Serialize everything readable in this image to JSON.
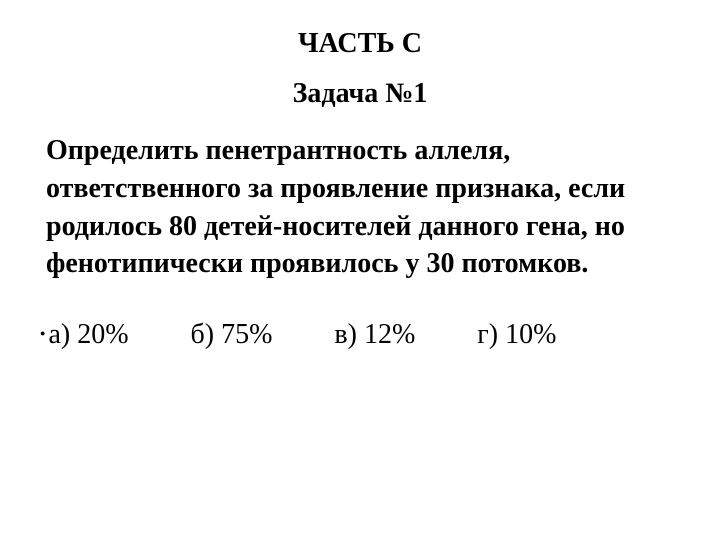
{
  "section_title": "ЧАСТЬ С",
  "task_title": "Задача №1",
  "problem_text": "Определить пенетрантность аллеля, ответственного за проявление признака, если родилось 80 детей-носителей данного гена, но фенотипически проявилось у 30 потомков.",
  "options": {
    "a": "а) 20%",
    "b": "б) 75%",
    "c": "в) 12%",
    "d": "г) 10%"
  },
  "colors": {
    "background": "#ffffff",
    "text": "#000000"
  },
  "typography": {
    "font_family": "Times New Roman",
    "heading_fontsize": 28,
    "body_fontsize": 28,
    "options_fontsize": 28,
    "heading_weight": "bold",
    "body_weight": "bold",
    "options_weight": "normal"
  }
}
